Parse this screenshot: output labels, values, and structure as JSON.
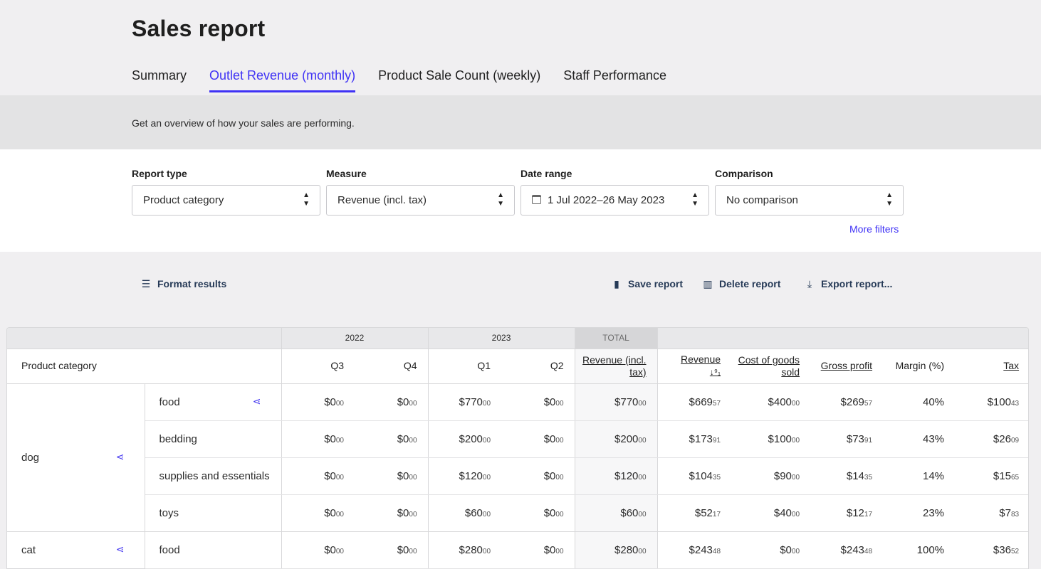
{
  "header": {
    "title": "Sales report",
    "tabs": [
      {
        "label": "Summary",
        "active": false
      },
      {
        "label": "Outlet Revenue (monthly)",
        "active": true
      },
      {
        "label": "Product Sale Count (weekly)",
        "active": false
      },
      {
        "label": "Staff Performance",
        "active": false
      }
    ],
    "description": "Get an overview of how your sales are performing."
  },
  "filters": {
    "report_type": {
      "label": "Report type",
      "value": "Product category"
    },
    "measure": {
      "label": "Measure",
      "value": "Revenue (incl. tax)"
    },
    "date_range": {
      "label": "Date range",
      "value": "1 Jul 2022–26 May 2023",
      "icon": "calendar-icon"
    },
    "comparison": {
      "label": "Comparison",
      "value": "No comparison"
    },
    "more_filters": "More filters"
  },
  "actions": {
    "format_results": "Format results",
    "save_report": "Save report",
    "delete_report": "Delete report",
    "export_report": "Export report..."
  },
  "table": {
    "years": {
      "y2022": "2022",
      "y2023": "2023",
      "total": "TOTAL"
    },
    "columns": {
      "category": "Product category",
      "q3": "Q3",
      "q4": "Q4",
      "q1": "Q1",
      "q2": "Q2",
      "revenue_incl_tax": "Revenue (incl. tax)",
      "revenue": "Revenue",
      "cogs": "Cost of goods sold",
      "gross_profit": "Gross profit",
      "margin": "Margin (%)",
      "tax": "Tax"
    },
    "rows": [
      {
        "category": "dog",
        "sub": "food",
        "q3": "$0",
        "q3c": "00",
        "q4": "$0",
        "q4c": "00",
        "q1": "$770",
        "q1c": "00",
        "q2": "$0",
        "q2c": "00",
        "total": "$770",
        "totalc": "00",
        "rev": "$669",
        "revc": "57",
        "cogs": "$400",
        "cogsc": "00",
        "gp": "$269",
        "gpc": "57",
        "margin": "40%",
        "tax": "$100",
        "taxc": "43"
      },
      {
        "category": "dog",
        "sub": "bedding",
        "q3": "$0",
        "q3c": "00",
        "q4": "$0",
        "q4c": "00",
        "q1": "$200",
        "q1c": "00",
        "q2": "$0",
        "q2c": "00",
        "total": "$200",
        "totalc": "00",
        "rev": "$173",
        "revc": "91",
        "cogs": "$100",
        "cogsc": "00",
        "gp": "$73",
        "gpc": "91",
        "margin": "43%",
        "tax": "$26",
        "taxc": "09"
      },
      {
        "category": "dog",
        "sub": "supplies and essentials",
        "q3": "$0",
        "q3c": "00",
        "q4": "$0",
        "q4c": "00",
        "q1": "$120",
        "q1c": "00",
        "q2": "$0",
        "q2c": "00",
        "total": "$120",
        "totalc": "00",
        "rev": "$104",
        "revc": "35",
        "cogs": "$90",
        "cogsc": "00",
        "gp": "$14",
        "gpc": "35",
        "margin": "14%",
        "tax": "$15",
        "taxc": "65"
      },
      {
        "category": "dog",
        "sub": "toys",
        "q3": "$0",
        "q3c": "00",
        "q4": "$0",
        "q4c": "00",
        "q1": "$60",
        "q1c": "00",
        "q2": "$0",
        "q2c": "00",
        "total": "$60",
        "totalc": "00",
        "rev": "$52",
        "revc": "17",
        "cogs": "$40",
        "cogsc": "00",
        "gp": "$12",
        "gpc": "17",
        "margin": "23%",
        "tax": "$7",
        "taxc": "83"
      },
      {
        "category": "cat",
        "sub": "food",
        "q3": "$0",
        "q3c": "00",
        "q4": "$0",
        "q4c": "00",
        "q1": "$280",
        "q1c": "00",
        "q2": "$0",
        "q2c": "00",
        "total": "$280",
        "totalc": "00",
        "rev": "$243",
        "revc": "48",
        "cogs": "$0",
        "cogsc": "00",
        "gp": "$243",
        "gpc": "48",
        "margin": "100%",
        "tax": "$36",
        "taxc": "52"
      }
    ]
  }
}
